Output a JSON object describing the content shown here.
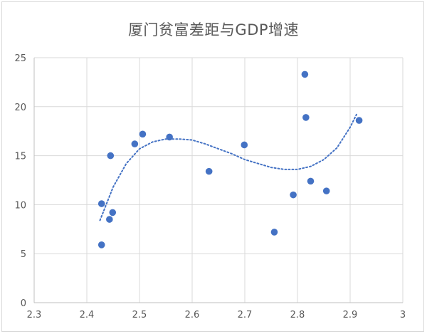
{
  "chart_data": {
    "type": "scatter",
    "title": "厦门贫富差距与GDP增速",
    "xlim": [
      2.3,
      3
    ],
    "ylim": [
      0,
      25
    ],
    "x_ticks": [
      "2.3",
      "2.4",
      "2.5",
      "2.6",
      "2.7",
      "2.8",
      "2.9",
      "3"
    ],
    "y_ticks": [
      "0",
      "5",
      "10",
      "15",
      "20",
      "25"
    ],
    "grid": true,
    "legend": "none",
    "series": [
      {
        "points": [
          {
            "x": 2.428,
            "y": 5.9
          },
          {
            "x": 2.428,
            "y": 10.1
          },
          {
            "x": 2.443,
            "y": 8.5
          },
          {
            "x": 2.445,
            "y": 15.0
          },
          {
            "x": 2.449,
            "y": 9.2
          },
          {
            "x": 2.491,
            "y": 16.2
          },
          {
            "x": 2.506,
            "y": 17.2
          },
          {
            "x": 2.557,
            "y": 16.9
          },
          {
            "x": 2.632,
            "y": 13.4
          },
          {
            "x": 2.699,
            "y": 16.1
          },
          {
            "x": 2.756,
            "y": 7.2
          },
          {
            "x": 2.792,
            "y": 11.0
          },
          {
            "x": 2.814,
            "y": 23.3
          },
          {
            "x": 2.816,
            "y": 18.9
          },
          {
            "x": 2.825,
            "y": 12.4
          },
          {
            "x": 2.855,
            "y": 11.4
          },
          {
            "x": 2.917,
            "y": 18.6
          }
        ],
        "color": "#4472c4"
      }
    ],
    "trendline": {
      "kind": "polynomial",
      "style": "dotted",
      "color": "#4472c4",
      "x_range": [
        2.425,
        2.912
      ],
      "points": [
        {
          "x": 2.425,
          "y": 8.4
        },
        {
          "x": 2.45,
          "y": 11.8
        },
        {
          "x": 2.475,
          "y": 14.2
        },
        {
          "x": 2.5,
          "y": 15.7
        },
        {
          "x": 2.525,
          "y": 16.4
        },
        {
          "x": 2.55,
          "y": 16.7
        },
        {
          "x": 2.575,
          "y": 16.7
        },
        {
          "x": 2.6,
          "y": 16.6
        },
        {
          "x": 2.625,
          "y": 16.2
        },
        {
          "x": 2.65,
          "y": 15.7
        },
        {
          "x": 2.675,
          "y": 15.2
        },
        {
          "x": 2.7,
          "y": 14.6
        },
        {
          "x": 2.725,
          "y": 14.2
        },
        {
          "x": 2.75,
          "y": 13.8
        },
        {
          "x": 2.775,
          "y": 13.6
        },
        {
          "x": 2.8,
          "y": 13.6
        },
        {
          "x": 2.825,
          "y": 13.9
        },
        {
          "x": 2.85,
          "y": 14.6
        },
        {
          "x": 2.875,
          "y": 15.8
        },
        {
          "x": 2.9,
          "y": 17.9
        },
        {
          "x": 2.912,
          "y": 19.2
        }
      ]
    }
  },
  "colors": {
    "marker": "#4472c4",
    "grid": "#d9d9d9",
    "axis": "#bfbfbf",
    "text": "#595959"
  }
}
